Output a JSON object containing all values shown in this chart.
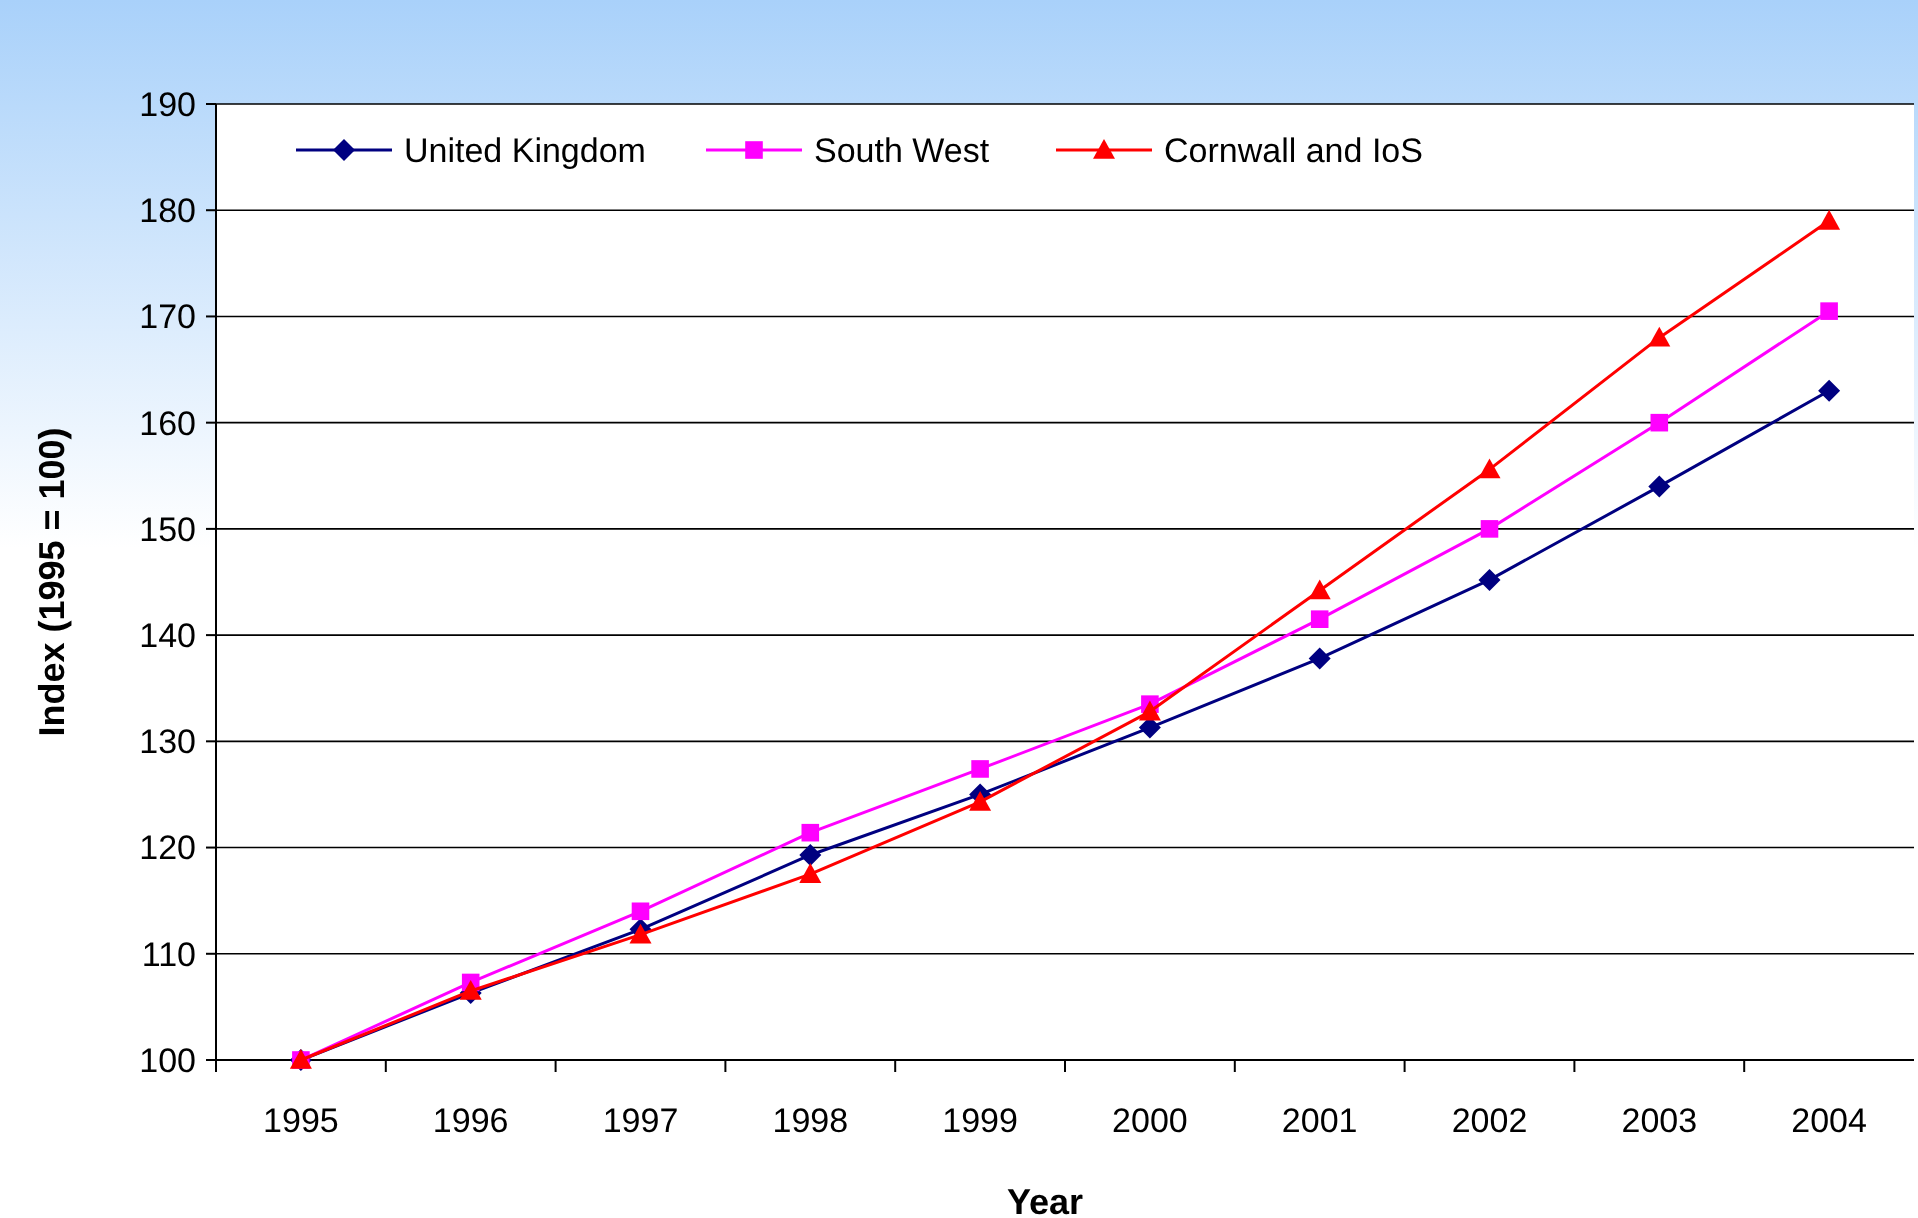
{
  "chart_data": {
    "type": "line",
    "xlabel": "Year",
    "ylabel": "Index (1995 = 100)",
    "categories": [
      "1995",
      "1996",
      "1997",
      "1998",
      "1999",
      "2000",
      "2001",
      "2002",
      "2003",
      "2004"
    ],
    "series": [
      {
        "name": "United Kingdom",
        "color": "#000080",
        "marker": "diamond",
        "values": [
          100,
          106.3,
          112.3,
          119.3,
          125,
          131.3,
          137.8,
          145.2,
          154,
          163
        ]
      },
      {
        "name": "South West",
        "color": "#ff00ff",
        "marker": "square",
        "values": [
          100,
          107.3,
          114,
          121.4,
          127.4,
          133.5,
          141.5,
          150,
          160,
          170.5
        ]
      },
      {
        "name": "Cornwall and IoS",
        "color": "#ff0000",
        "marker": "triangle",
        "values": [
          100,
          106.5,
          111.8,
          117.5,
          124.3,
          132.8,
          144.2,
          155.6,
          168,
          179
        ]
      }
    ],
    "ylim": [
      100,
      190
    ],
    "yticks": [
      100,
      110,
      120,
      130,
      140,
      150,
      160,
      170,
      180,
      190
    ],
    "grid": "y",
    "legend": "top left"
  }
}
